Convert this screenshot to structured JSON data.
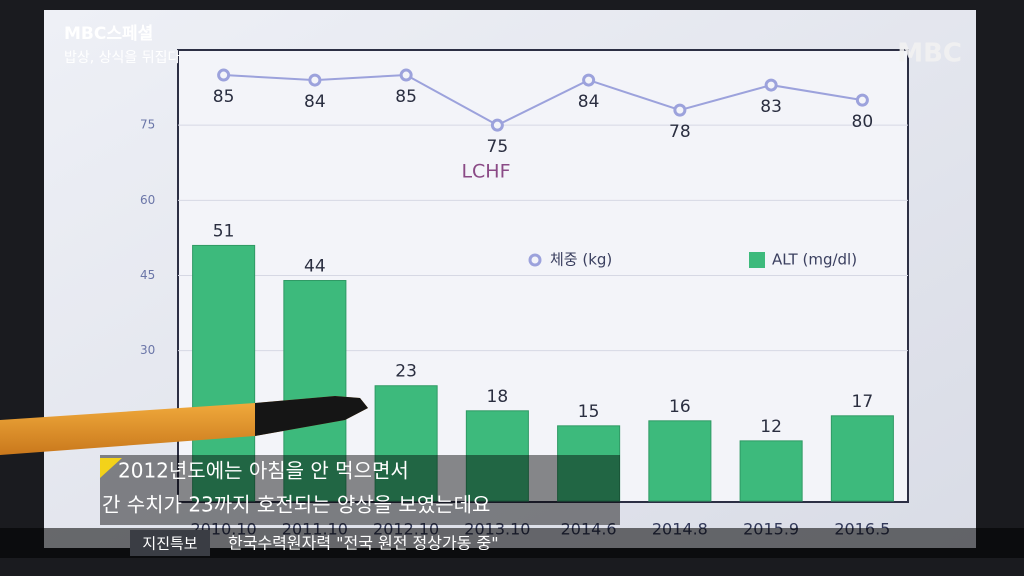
{
  "chart_data": {
    "type": "bar-line",
    "annotation": "LCHF",
    "categories": [
      "2010.10",
      "2011.10",
      "2012.10",
      "2013.10",
      "2014.6",
      "2014.8",
      "2015.9",
      "2016.5"
    ],
    "series": [
      {
        "name": "체중 (kg)",
        "type": "line",
        "color": "#9ca2dc",
        "values": [
          85,
          84,
          85,
          75,
          84,
          78,
          83,
          80
        ]
      },
      {
        "name": "ALT (mg/dl)",
        "type": "bar",
        "color": "#3dba7c",
        "values": [
          51,
          44,
          23,
          18,
          15,
          16,
          12,
          17
        ]
      }
    ],
    "ylim": [
      0,
      90
    ],
    "yticks": [
      30,
      45,
      60,
      75
    ],
    "grid": true
  },
  "broadcast": {
    "program": "MBC스페셜",
    "episode": "밥상, 상식을 뒤집다",
    "logo": "MBC",
    "subtitle": [
      "2012년도에는 아침을 안 먹으면서",
      "간 수치가 23까지 호전되는 양상을 보였는데요"
    ],
    "ticker": {
      "tag": "지진특보",
      "text": "한국수력원자력 \"전국 원전 정상가동 중\""
    }
  }
}
